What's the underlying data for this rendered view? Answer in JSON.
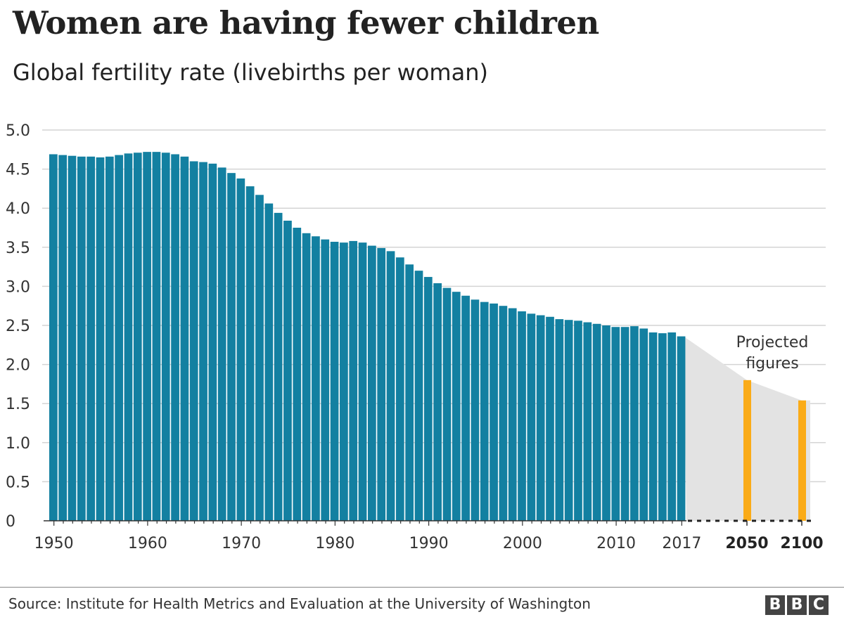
{
  "header": {
    "title": "Women are having fewer children",
    "subtitle": "Global fertility rate (livebirths per woman)"
  },
  "footer": {
    "source": "Source: Institute for Health Metrics and Evaluation at the University of Washington",
    "logo": [
      "B",
      "B",
      "C"
    ]
  },
  "chart_data": {
    "type": "bar",
    "title": "Women are having fewer children",
    "subtitle": "Global fertility rate (livebirths per woman)",
    "ylim": [
      0,
      5.0
    ],
    "yticks": [
      "0",
      "0.5",
      "1.0",
      "1.5",
      "2.0",
      "2.5",
      "3.0",
      "3.5",
      "4.0",
      "4.5",
      "5.0"
    ],
    "grid": true,
    "colors": {
      "historical": "#1380A1",
      "projected": "#FAAB18",
      "projection_shade": "#E3E3E3"
    },
    "historical": {
      "start_year": 1950,
      "end_year": 2017,
      "xtick_labels": [
        "1950",
        "1960",
        "1970",
        "1980",
        "1990",
        "2000",
        "2010",
        "2017"
      ],
      "values": [
        4.69,
        4.68,
        4.67,
        4.66,
        4.66,
        4.65,
        4.66,
        4.68,
        4.7,
        4.71,
        4.72,
        4.72,
        4.71,
        4.69,
        4.66,
        4.6,
        4.59,
        4.57,
        4.52,
        4.45,
        4.38,
        4.28,
        4.17,
        4.06,
        3.94,
        3.84,
        3.75,
        3.68,
        3.64,
        3.6,
        3.57,
        3.56,
        3.58,
        3.56,
        3.52,
        3.49,
        3.45,
        3.37,
        3.28,
        3.2,
        3.12,
        3.04,
        2.98,
        2.93,
        2.88,
        2.83,
        2.8,
        2.78,
        2.75,
        2.72,
        2.68,
        2.65,
        2.63,
        2.61,
        2.58,
        2.57,
        2.56,
        2.54,
        2.52,
        2.5,
        2.48,
        2.48,
        2.49,
        2.46,
        2.41,
        2.4,
        2.41,
        2.36
      ]
    },
    "projected": {
      "label": "Projected figures",
      "categories": [
        "2050",
        "2100"
      ],
      "values": [
        1.8,
        1.54
      ]
    }
  }
}
